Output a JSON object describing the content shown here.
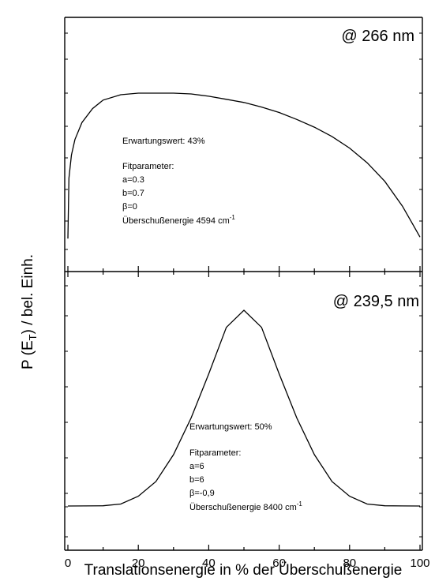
{
  "chart_data": {
    "type": "line",
    "xlabel": "Translationsenergie in % der Überschußenergie",
    "ylabel_main": "P (E",
    "ylabel_sub": "T",
    "ylabel_tail": ") / bel. Einh.",
    "xlim": [
      0,
      100
    ],
    "xticks": [
      0,
      20,
      40,
      60,
      80,
      100
    ],
    "panels": [
      {
        "label": "@ 266 nm",
        "annotations": {
          "erwartung": "Erwartungswert: 43%",
          "fit_heading": "Fitparameter:",
          "a": "a=0.3",
          "b": "b=0.7",
          "beta": "β=0",
          "energy": "Überschußenergie 4594 cm",
          "energy_sup": "-1"
        },
        "ylim": [
          0,
          1.3
        ],
        "x": [
          0,
          0.3,
          1,
          2,
          4,
          7,
          10,
          15,
          20,
          25,
          30,
          35,
          40,
          45,
          50,
          55,
          60,
          65,
          70,
          75,
          80,
          85,
          90,
          95,
          98,
          100
        ],
        "y": [
          0.06,
          0.45,
          0.6,
          0.7,
          0.81,
          0.9,
          0.955,
          0.99,
          1.0,
          1.0,
          1.0,
          0.995,
          0.98,
          0.96,
          0.94,
          0.91,
          0.875,
          0.83,
          0.78,
          0.72,
          0.645,
          0.55,
          0.43,
          0.27,
          0.15,
          0.07
        ]
      },
      {
        "label": "@ 239,5 nm",
        "annotations": {
          "erwartung": "Erwartungswert: 50%",
          "fit_heading": "Fitparameter:",
          "a": "a=6",
          "b": "b=6",
          "beta": "β=-0,9",
          "energy": "Überschußenergie 8400 cm",
          "energy_sup": "-1"
        },
        "ylim": [
          0,
          1.0
        ],
        "x": [
          0,
          10,
          15,
          20,
          25,
          30,
          35,
          40,
          45,
          50,
          55,
          60,
          65,
          70,
          75,
          80,
          85,
          90,
          100
        ],
        "y": [
          0.0,
          0.001,
          0.008,
          0.04,
          0.1,
          0.21,
          0.36,
          0.54,
          0.73,
          0.8,
          0.73,
          0.54,
          0.36,
          0.21,
          0.1,
          0.04,
          0.008,
          0.001,
          0.0
        ]
      }
    ]
  }
}
